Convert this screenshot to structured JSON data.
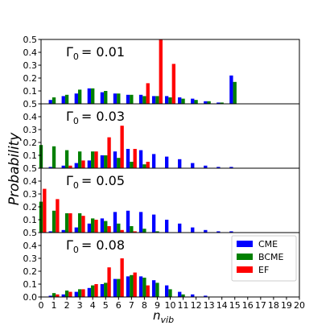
{
  "chart_data": {
    "type": "bar",
    "layout": "4 stacked panels sharing x axis",
    "xlabel": "n_vib",
    "xlabel_main": "n",
    "xlabel_sub": "vib",
    "ylabel": "Probability",
    "xlim": [
      0,
      20
    ],
    "ylim": [
      0,
      0.5
    ],
    "x_ticks": [
      0,
      1,
      2,
      3,
      4,
      5,
      6,
      7,
      8,
      9,
      10,
      11,
      12,
      13,
      14,
      15,
      16,
      17,
      18,
      19,
      20
    ],
    "y_ticks": [
      0.0,
      0.1,
      0.2,
      0.3,
      0.4,
      0.5
    ],
    "legend": {
      "placement": "lower-right panel, upper right",
      "entries": [
        {
          "name": "CME",
          "color": "#0000ff"
        },
        {
          "name": "BCME",
          "color": "#008000"
        },
        {
          "name": "EF",
          "color": "#ff0000"
        }
      ]
    },
    "panels": [
      {
        "label": "Γ",
        "label_sub": "0",
        "label_value": "= 0.01",
        "series": [
          {
            "name": "CME",
            "color": "#0000ff",
            "x": [
              1,
              2,
              3,
              4,
              5,
              6,
              7,
              8,
              9,
              10,
              11,
              12,
              13,
              14,
              15
            ],
            "values": [
              0.03,
              0.06,
              0.08,
              0.12,
              0.09,
              0.08,
              0.07,
              0.07,
              0.06,
              0.06,
              0.05,
              0.04,
              0.02,
              0.01,
              0.22
            ]
          },
          {
            "name": "BCME",
            "color": "#008000",
            "x": [
              1,
              2,
              3,
              4,
              5,
              6,
              7,
              8,
              9,
              10,
              11,
              12,
              13,
              14,
              15
            ],
            "values": [
              0.05,
              0.07,
              0.11,
              0.12,
              0.1,
              0.08,
              0.07,
              0.06,
              0.06,
              0.05,
              0.04,
              0.03,
              0.02,
              0.01,
              0.17
            ]
          },
          {
            "name": "EF",
            "color": "#ff0000",
            "x": [
              8,
              9,
              10
            ],
            "values": [
              0.16,
              0.5,
              0.31
            ]
          }
        ]
      },
      {
        "label": "Γ",
        "label_sub": "0",
        "label_value": "= 0.03",
        "series": [
          {
            "name": "CME",
            "color": "#0000ff",
            "x": [
              1,
              2,
              3,
              4,
              5,
              6,
              7,
              8,
              9,
              10,
              11,
              12,
              13,
              14,
              15
            ],
            "values": [
              0.01,
              0.02,
              0.04,
              0.06,
              0.1,
              0.13,
              0.15,
              0.14,
              0.11,
              0.09,
              0.07,
              0.04,
              0.02,
              0.01,
              0.01
            ]
          },
          {
            "name": "BCME",
            "color": "#008000",
            "x": [
              0,
              1,
              2,
              3,
              4,
              5,
              6,
              7,
              8
            ],
            "values": [
              0.18,
              0.17,
              0.14,
              0.13,
              0.13,
              0.1,
              0.08,
              0.05,
              0.03
            ]
          },
          {
            "name": "EF",
            "color": "#ff0000",
            "x": [
              2,
              3,
              4,
              5,
              6,
              7,
              8
            ],
            "values": [
              0.02,
              0.06,
              0.13,
              0.24,
              0.33,
              0.15,
              0.05
            ]
          }
        ]
      },
      {
        "label": "Γ",
        "label_sub": "0",
        "label_value": "= 0.05",
        "series": [
          {
            "name": "CME",
            "color": "#0000ff",
            "x": [
              1,
              2,
              3,
              4,
              5,
              6,
              7,
              8,
              9,
              10,
              11,
              12,
              13,
              14,
              15
            ],
            "values": [
              0.01,
              0.02,
              0.04,
              0.07,
              0.11,
              0.16,
              0.17,
              0.16,
              0.14,
              0.1,
              0.07,
              0.04,
              0.02,
              0.01,
              0.01
            ]
          },
          {
            "name": "BCME",
            "color": "#008000",
            "x": [
              0,
              1,
              2,
              3,
              4,
              5,
              6,
              7,
              8,
              9
            ],
            "values": [
              0.24,
              0.17,
              0.15,
              0.15,
              0.11,
              0.09,
              0.07,
              0.05,
              0.03,
              0.01
            ]
          },
          {
            "name": "EF",
            "color": "#ff0000",
            "x": [
              0,
              1,
              2,
              3,
              4,
              5,
              6,
              7
            ],
            "values": [
              0.34,
              0.26,
              0.15,
              0.13,
              0.1,
              0.05,
              0.02,
              0.01
            ]
          }
        ]
      },
      {
        "label": "Γ",
        "label_sub": "0",
        "label_value": "= 0.08",
        "series": [
          {
            "name": "CME",
            "color": "#0000ff",
            "x": [
              1,
              2,
              3,
              4,
              5,
              6,
              7,
              8,
              9,
              10,
              11,
              12,
              13
            ],
            "values": [
              0.01,
              0.02,
              0.04,
              0.07,
              0.1,
              0.14,
              0.16,
              0.16,
              0.13,
              0.09,
              0.04,
              0.02,
              0.01
            ]
          },
          {
            "name": "BCME",
            "color": "#008000",
            "x": [
              1,
              2,
              3,
              4,
              5,
              6,
              7,
              8,
              9,
              10,
              11
            ],
            "values": [
              0.03,
              0.05,
              0.06,
              0.09,
              0.11,
              0.14,
              0.17,
              0.15,
              0.11,
              0.06,
              0.02
            ]
          },
          {
            "name": "EF",
            "color": "#ff0000",
            "x": [
              1,
              2,
              3,
              4,
              5,
              6,
              7,
              8
            ],
            "values": [
              0.02,
              0.04,
              0.06,
              0.1,
              0.23,
              0.3,
              0.19,
              0.09
            ]
          }
        ]
      }
    ]
  }
}
